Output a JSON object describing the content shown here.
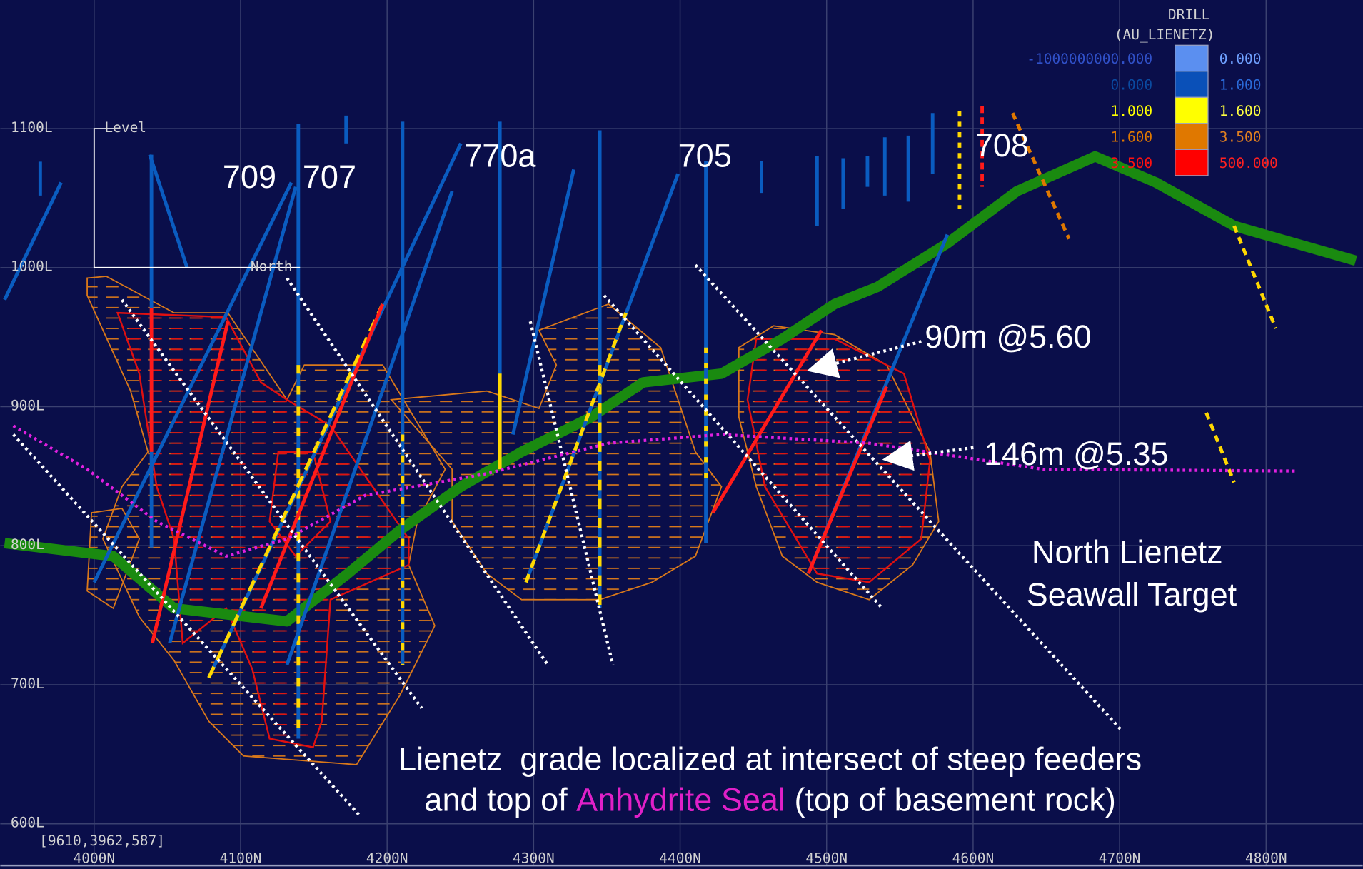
{
  "axes": {
    "levels": [
      "1100L",
      "1000L",
      "900L",
      "800L",
      "700L",
      "600L"
    ],
    "northings": [
      "4000N",
      "4100N",
      "4200N",
      "4300N",
      "4400N",
      "4500N",
      "4600N",
      "4700N",
      "4800N"
    ]
  },
  "legend": {
    "title": "DRILL",
    "subtitle": "(AU_LIENETZ)",
    "rows": [
      {
        "from": "-1000000000.000",
        "to": "0.000"
      },
      {
        "from": "0.000",
        "to": "1.000"
      },
      {
        "from": "1.000",
        "to": "1.600"
      },
      {
        "from": "1.600",
        "to": "3.500"
      },
      {
        "from": "3.500",
        "to": "500.000"
      }
    ]
  },
  "frame": {
    "level": "Level",
    "north": "North"
  },
  "holes": [
    "709",
    "707",
    "770a",
    "705",
    "708"
  ],
  "annotations": {
    "intercept_1": "90m @5.60",
    "intercept_2": "146m @5.35",
    "target": [
      "North Lienetz",
      "Seawall Target"
    ]
  },
  "caption": {
    "line1": "Lienetz  grade localized at intersect of steep feeders",
    "line2_before": "and top of ",
    "line2_highlight": "Anhydrite Seal",
    "line2_after": " (top of basement rock)"
  },
  "coordinates": "[9610,3962,587]"
}
